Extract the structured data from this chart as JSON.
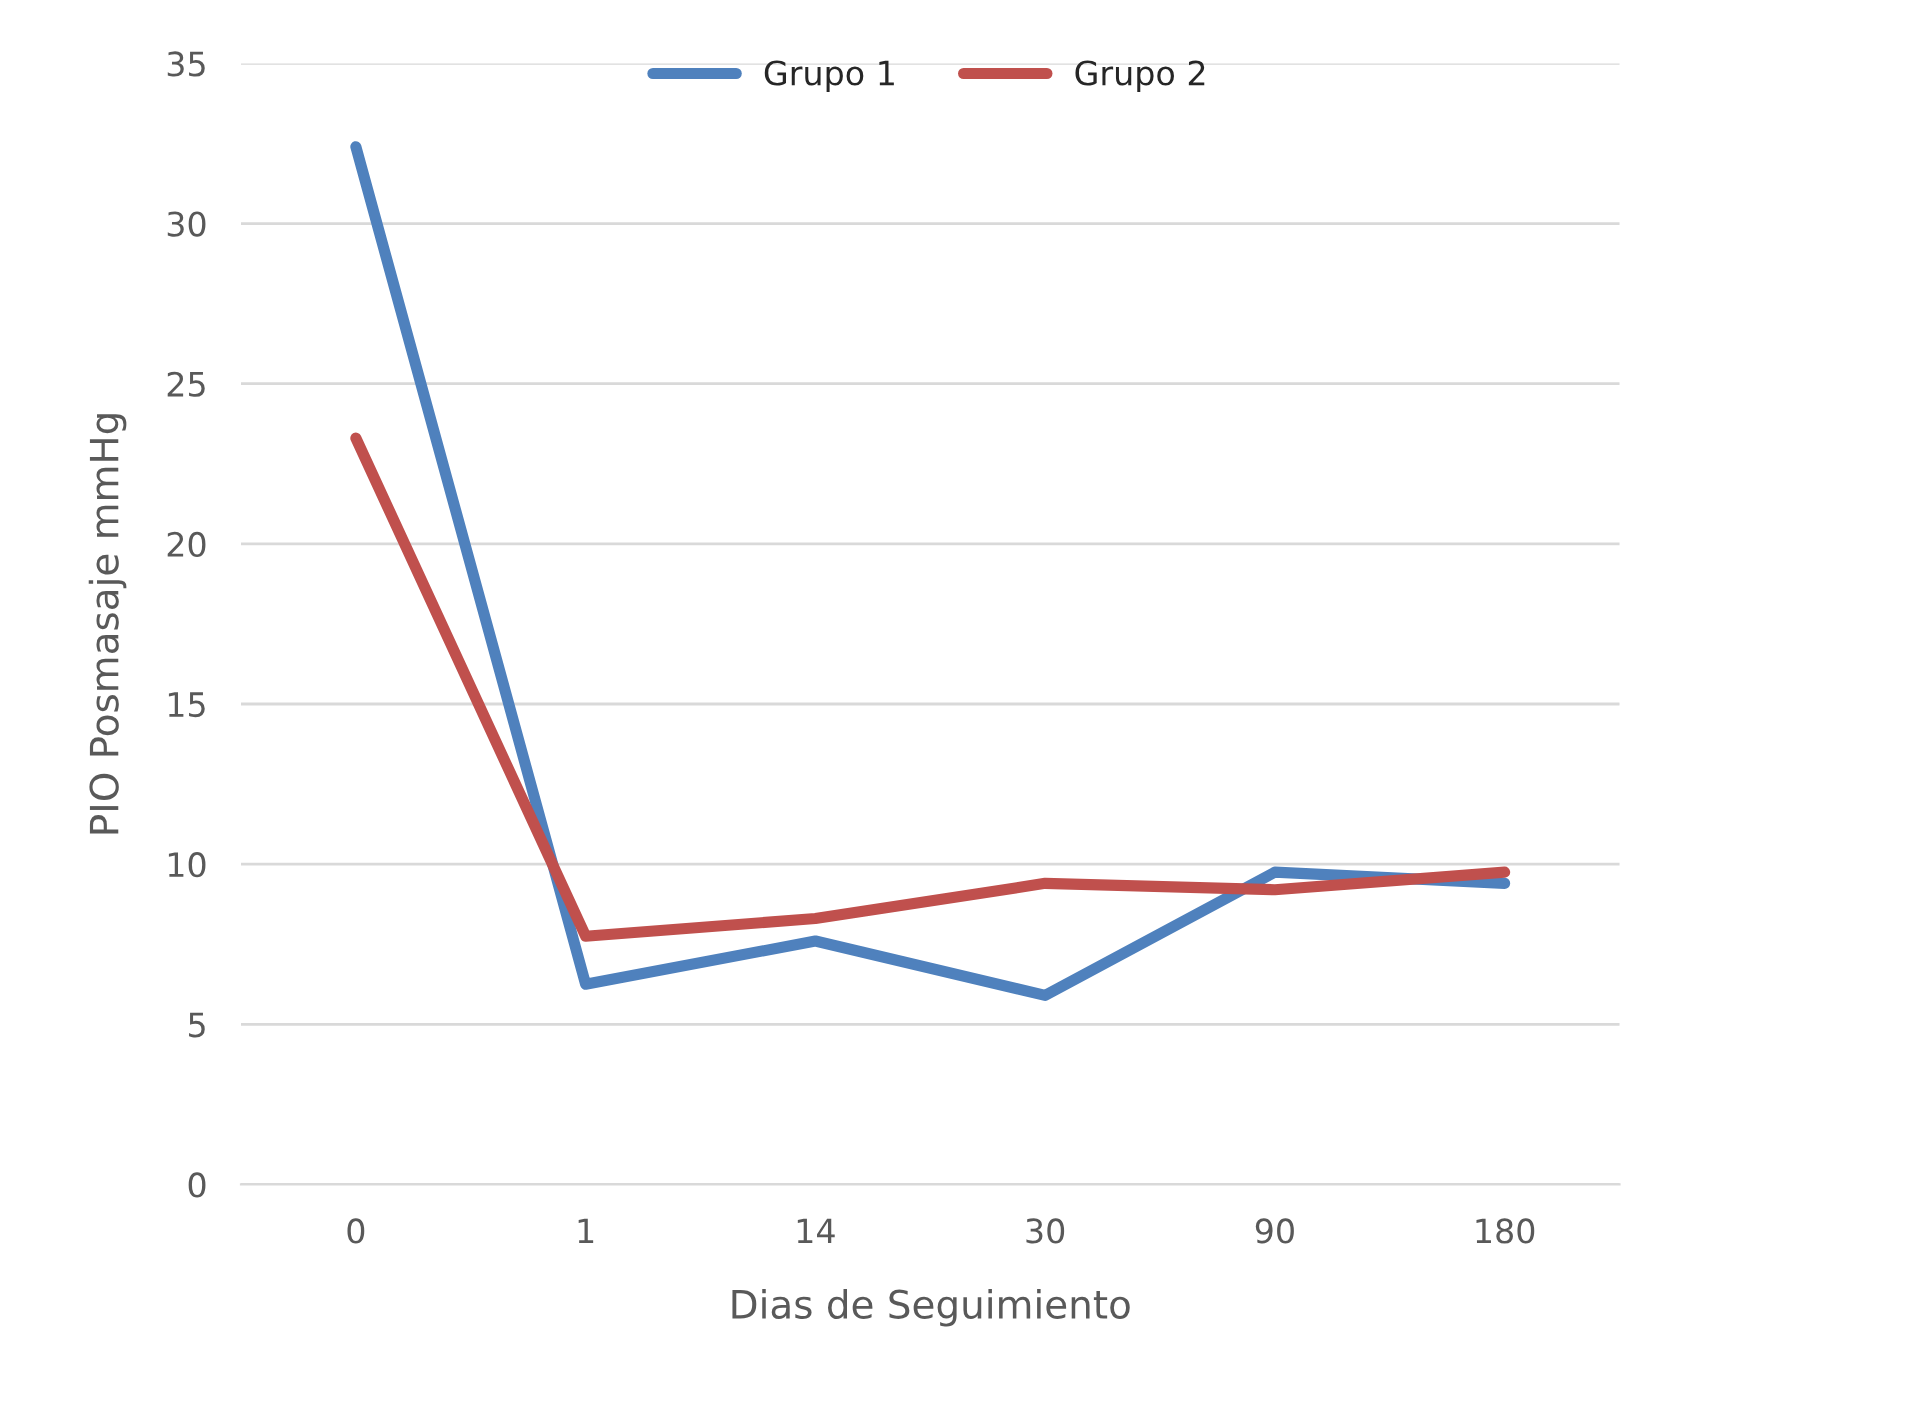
{
  "chart_data": {
    "type": "line",
    "xlabel": "Dias de Seguimiento",
    "ylabel": "PIO Posmasaje mmHg",
    "categories": [
      "0",
      "1",
      "14",
      "30",
      "90",
      "180"
    ],
    "series": [
      {
        "name": "Grupo 1",
        "color": "#4f81bd",
        "values": [
          32.4,
          6.25,
          7.6,
          5.9,
          9.75,
          9.4
        ]
      },
      {
        "name": "Grupo 2",
        "color": "#c0504d",
        "values": [
          23.3,
          7.75,
          8.3,
          9.4,
          9.2,
          9.75
        ]
      }
    ],
    "ylim": [
      0,
      35
    ],
    "yticks": [
      0,
      5,
      10,
      15,
      20,
      25,
      30,
      35
    ],
    "grid": "y",
    "legend": "top",
    "marker": "none",
    "line_style": "solid"
  }
}
